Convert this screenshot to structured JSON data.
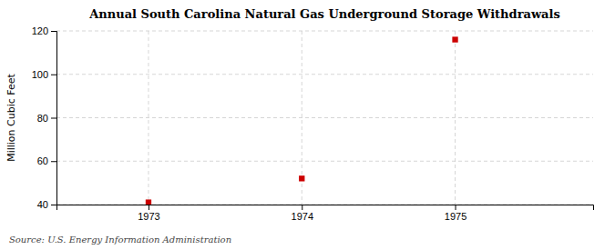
{
  "chart_data": {
    "type": "scatter",
    "title": "Annual South Carolina Natural Gas Underground Storage Withdrawals",
    "y_label": "Million Cubic Feet",
    "annotations": [
      "Source: U.S. Energy Information Administration"
    ],
    "x": [
      1973,
      1974,
      1975
    ],
    "values": [
      41,
      52,
      116
    ],
    "color": "#cc0000",
    "marker": "square",
    "xlim": [
      1972.4,
      1975.9
    ],
    "ylim": [
      40,
      120
    ],
    "xticks": [
      1973,
      1974,
      1975
    ],
    "yticks": [
      40,
      60,
      80,
      100,
      120
    ],
    "grid": true
  }
}
